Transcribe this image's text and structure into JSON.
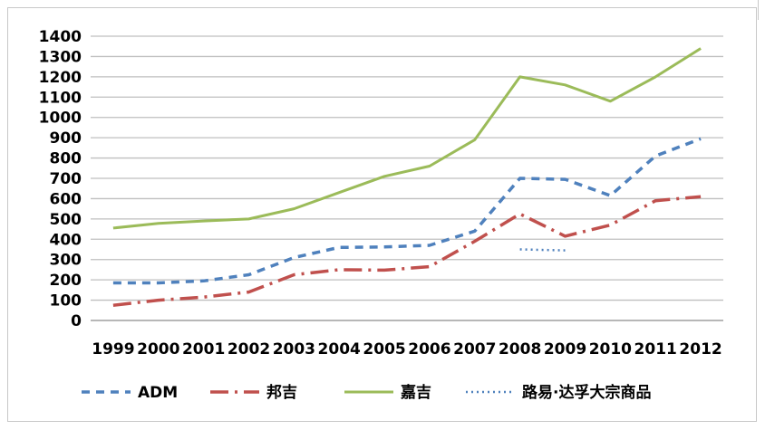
{
  "chart_data": {
    "type": "line",
    "categories": [
      "1999",
      "2000",
      "2001",
      "2002",
      "2003",
      "2004",
      "2005",
      "2006",
      "2007",
      "2008",
      "2009",
      "2010",
      "2011",
      "2012"
    ],
    "ylim": [
      0,
      1400
    ],
    "yticks": [
      "0",
      "100",
      "200",
      "300",
      "400",
      "500",
      "600",
      "700",
      "800",
      "900",
      "1000",
      "1100",
      "1200",
      "1300",
      "1400"
    ],
    "grid": true,
    "legend_position": "bottom",
    "series": [
      {
        "name": "ADM",
        "color": "#4f81bd",
        "style": "dashed",
        "values": [
          185,
          185,
          195,
          225,
          310,
          360,
          362,
          370,
          440,
          700,
          695,
          615,
          810,
          895
        ]
      },
      {
        "name": "邦吉",
        "color": "#c0504d",
        "style": "dashdot",
        "values": [
          75,
          100,
          115,
          140,
          225,
          250,
          248,
          265,
          390,
          525,
          415,
          470,
          590,
          610
        ]
      },
      {
        "name": "嘉吉",
        "color": "#9bbb59",
        "style": "solid",
        "values": [
          455,
          478,
          490,
          500,
          550,
          630,
          710,
          760,
          890,
          1200,
          1160,
          1080,
          1200,
          1340
        ]
      },
      {
        "name": "路易·达孚大宗商品",
        "color": "#4f81bd",
        "style": "dotted",
        "values": [
          null,
          null,
          null,
          null,
          null,
          null,
          null,
          null,
          null,
          350,
          345,
          null,
          null,
          null
        ]
      }
    ]
  }
}
